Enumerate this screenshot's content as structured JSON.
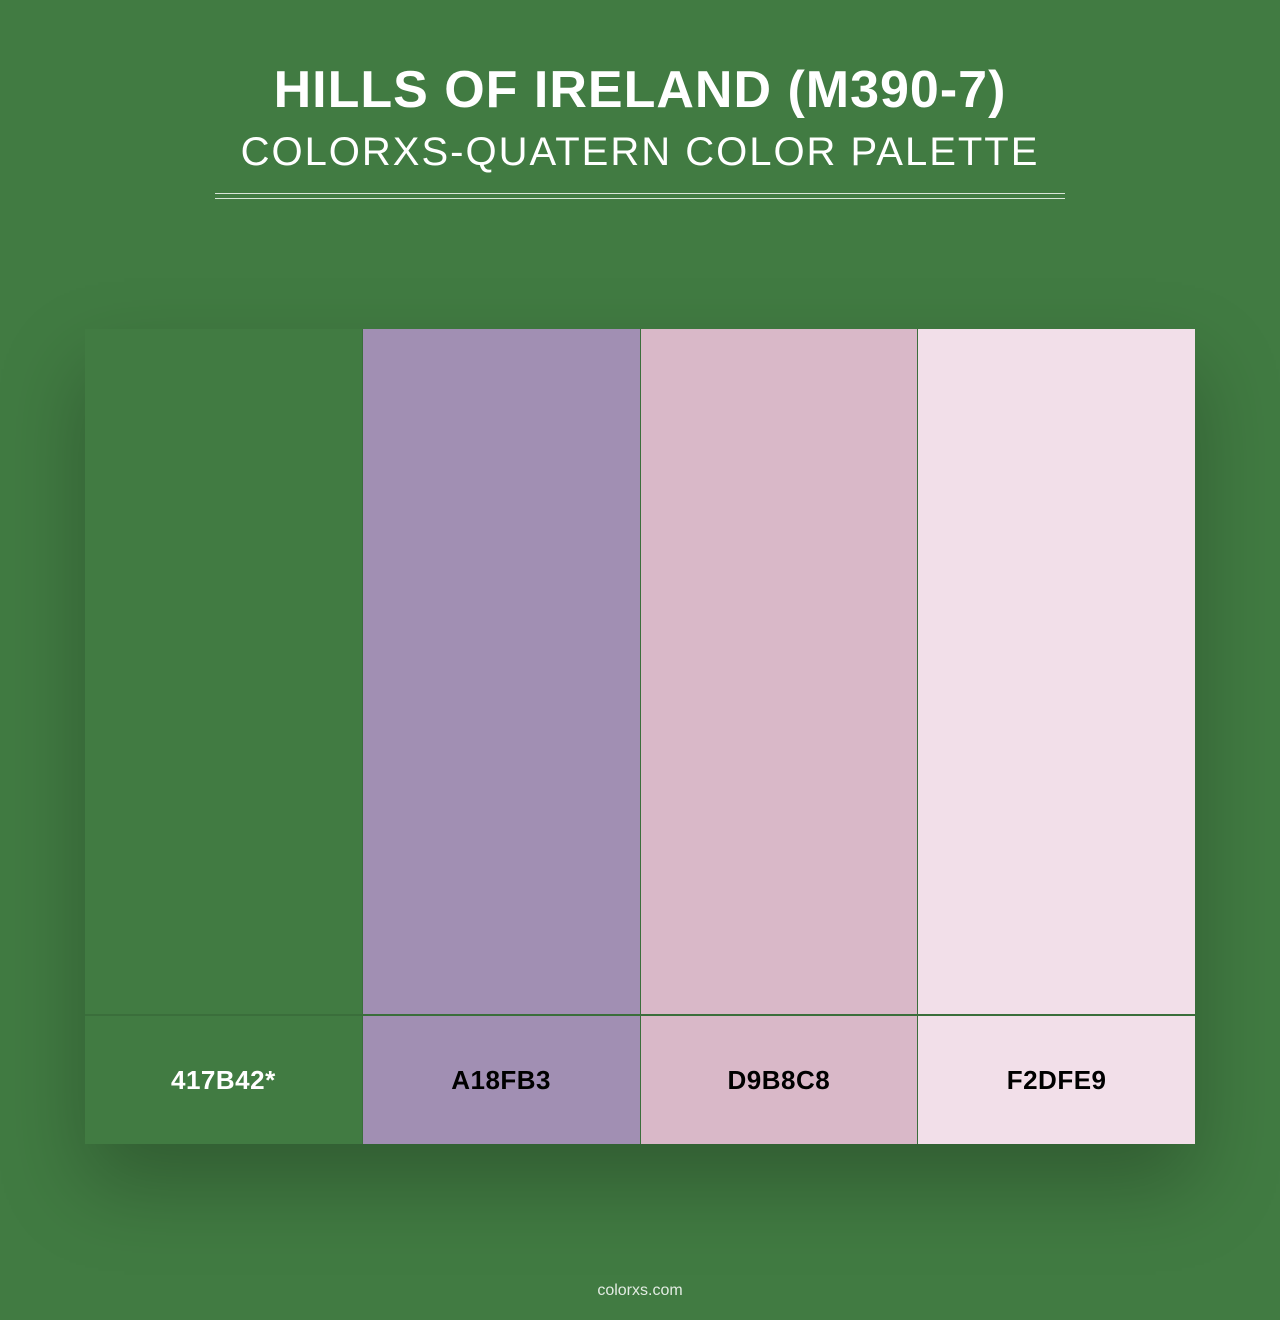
{
  "background_color": "#417b42",
  "text_color_light": "#ffffff",
  "border_color": "#3a6e3b",
  "divider_color": "#d9e6d9",
  "header": {
    "title": "HILLS OF IRELAND (M390-7)",
    "subtitle": "COLORXS-QUATERN COLOR PALETTE",
    "divider_width": 850
  },
  "palette": {
    "swatches": [
      {
        "hex": "#417b42",
        "label": "417B42*",
        "label_color": "#ffffff"
      },
      {
        "hex": "#a18fb3",
        "label": "A18FB3",
        "label_color": "#000000"
      },
      {
        "hex": "#d9b8c8",
        "label": "D9B8C8",
        "label_color": "#000000"
      },
      {
        "hex": "#f2dfe9",
        "label": "F2DFE9",
        "label_color": "#000000"
      }
    ]
  },
  "footer": {
    "text": "colorxs.com"
  }
}
